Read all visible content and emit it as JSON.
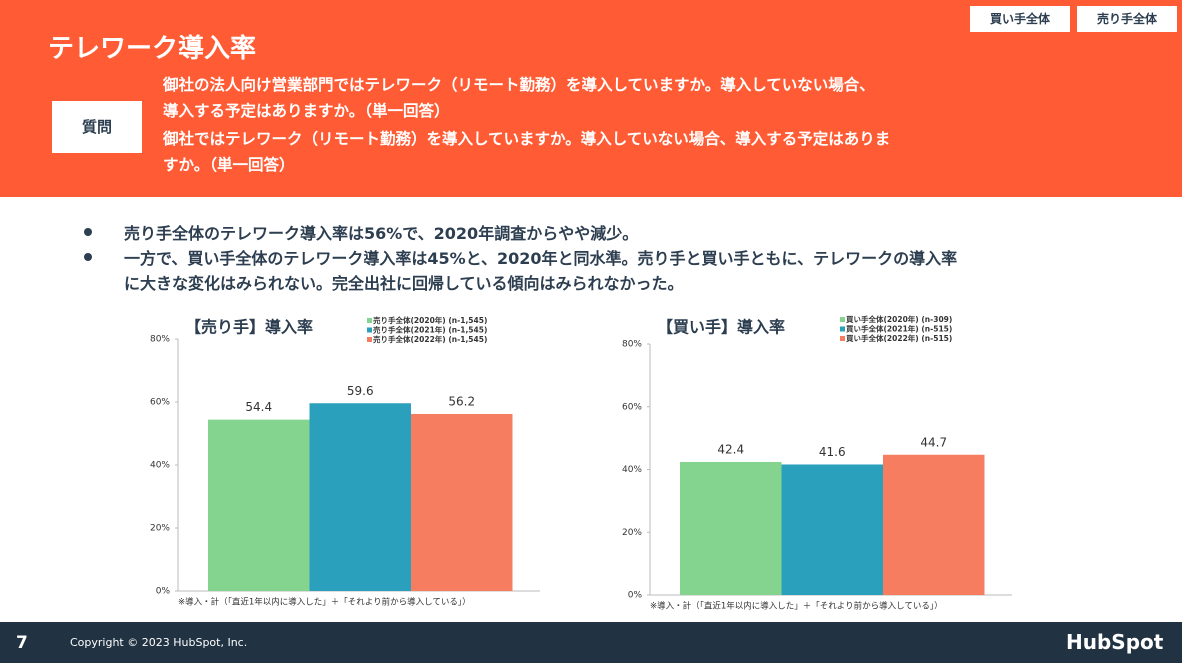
{
  "header": {
    "title": "テレワーク導入率",
    "buttons": [
      "買い手全体",
      "売り手全体"
    ],
    "question_label": "質問",
    "question_lines": [
      "御社の法人向け営業部門ではテレワーク（リモート勤務）を導入していますか。導入していない場合、",
      "導入する予定はありますか。（単一回答）",
      "御社ではテレワーク（リモート勤務）を導入していますか。導入していない場合、導入する予定はありま",
      "すか。（単一回答）"
    ]
  },
  "bullets": [
    [
      "売り手全体のテレワーク導入率は56%で、2020年調査からやや減少。"
    ],
    [
      "一方で、買い手全体のテレワーク導入率は45%と、2020年と同水準。売り手と買い手ともに、テレワークの導入率",
      "に大きな変化はみられない。完全出社に回帰している傾向はみられなかった。"
    ]
  ],
  "chart_data": [
    {
      "type": "bar",
      "title": "【売り手】導入率",
      "note": "※導入・計（「直近1年以内に導入した」＋「それより前から導入している」）",
      "ylim": [
        0,
        80
      ],
      "yticks": [
        {
          "value": 0,
          "label": "0%"
        },
        {
          "value": 20,
          "label": "20%"
        },
        {
          "value": 40,
          "label": "40%"
        },
        {
          "value": 60,
          "label": "60%"
        },
        {
          "value": 80,
          "label": "80%"
        }
      ],
      "series": [
        {
          "name": "売り手全体(2020年) (n-1,545)",
          "color": "#84d38f",
          "values": [
            54.4
          ]
        },
        {
          "name": "売り手全体(2021年) (n-1,545)",
          "color": "#2aa0bd",
          "values": [
            59.6
          ]
        },
        {
          "name": "売り手全体(2022年) (n-1,545)",
          "color": "#f77d60",
          "values": [
            56.2
          ]
        }
      ]
    },
    {
      "type": "bar",
      "title": "【買い手】導入率",
      "note": "※導入・計（「直近1年以内に導入した」＋「それより前から導入している」）",
      "ylim": [
        0,
        80
      ],
      "yticks": [
        {
          "value": 0,
          "label": "0%"
        },
        {
          "value": 20,
          "label": "20%"
        },
        {
          "value": 40,
          "label": "40%"
        },
        {
          "value": 60,
          "label": "60%"
        },
        {
          "value": 80,
          "label": "80%"
        }
      ],
      "series": [
        {
          "name": "買い手全体(2020年) (n-309)",
          "color": "#84d38f",
          "values": [
            42.4
          ]
        },
        {
          "name": "買い手全体(2021年) (n-515)",
          "color": "#2aa0bd",
          "values": [
            41.6
          ]
        },
        {
          "name": "買い手全体(2022年) (n-515)",
          "color": "#f77d60",
          "values": [
            44.7
          ]
        }
      ]
    }
  ],
  "footer": {
    "page": "7",
    "copyright": "Copyright © 2023 HubSpot, Inc.",
    "logo": "HubSpot"
  }
}
